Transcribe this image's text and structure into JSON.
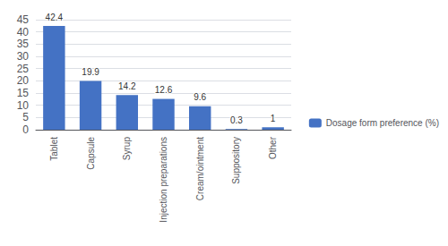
{
  "chart_data": {
    "type": "bar",
    "categories": [
      "Tablet",
      "Capsule",
      "Syrup",
      "Injection preparations",
      "Cream/ointment",
      "Suppository",
      "Other"
    ],
    "series": [
      {
        "name": "Dosage form preference (%)",
        "color": "#4472C4",
        "values": [
          42.4,
          19.9,
          14.2,
          12.6,
          9.6,
          0.3,
          1
        ]
      }
    ],
    "ylim": [
      0,
      45
    ],
    "yticks": [
      0,
      5,
      10,
      15,
      20,
      25,
      30,
      35,
      40,
      45
    ],
    "grid": true,
    "legend": "right",
    "data_labels": true
  }
}
